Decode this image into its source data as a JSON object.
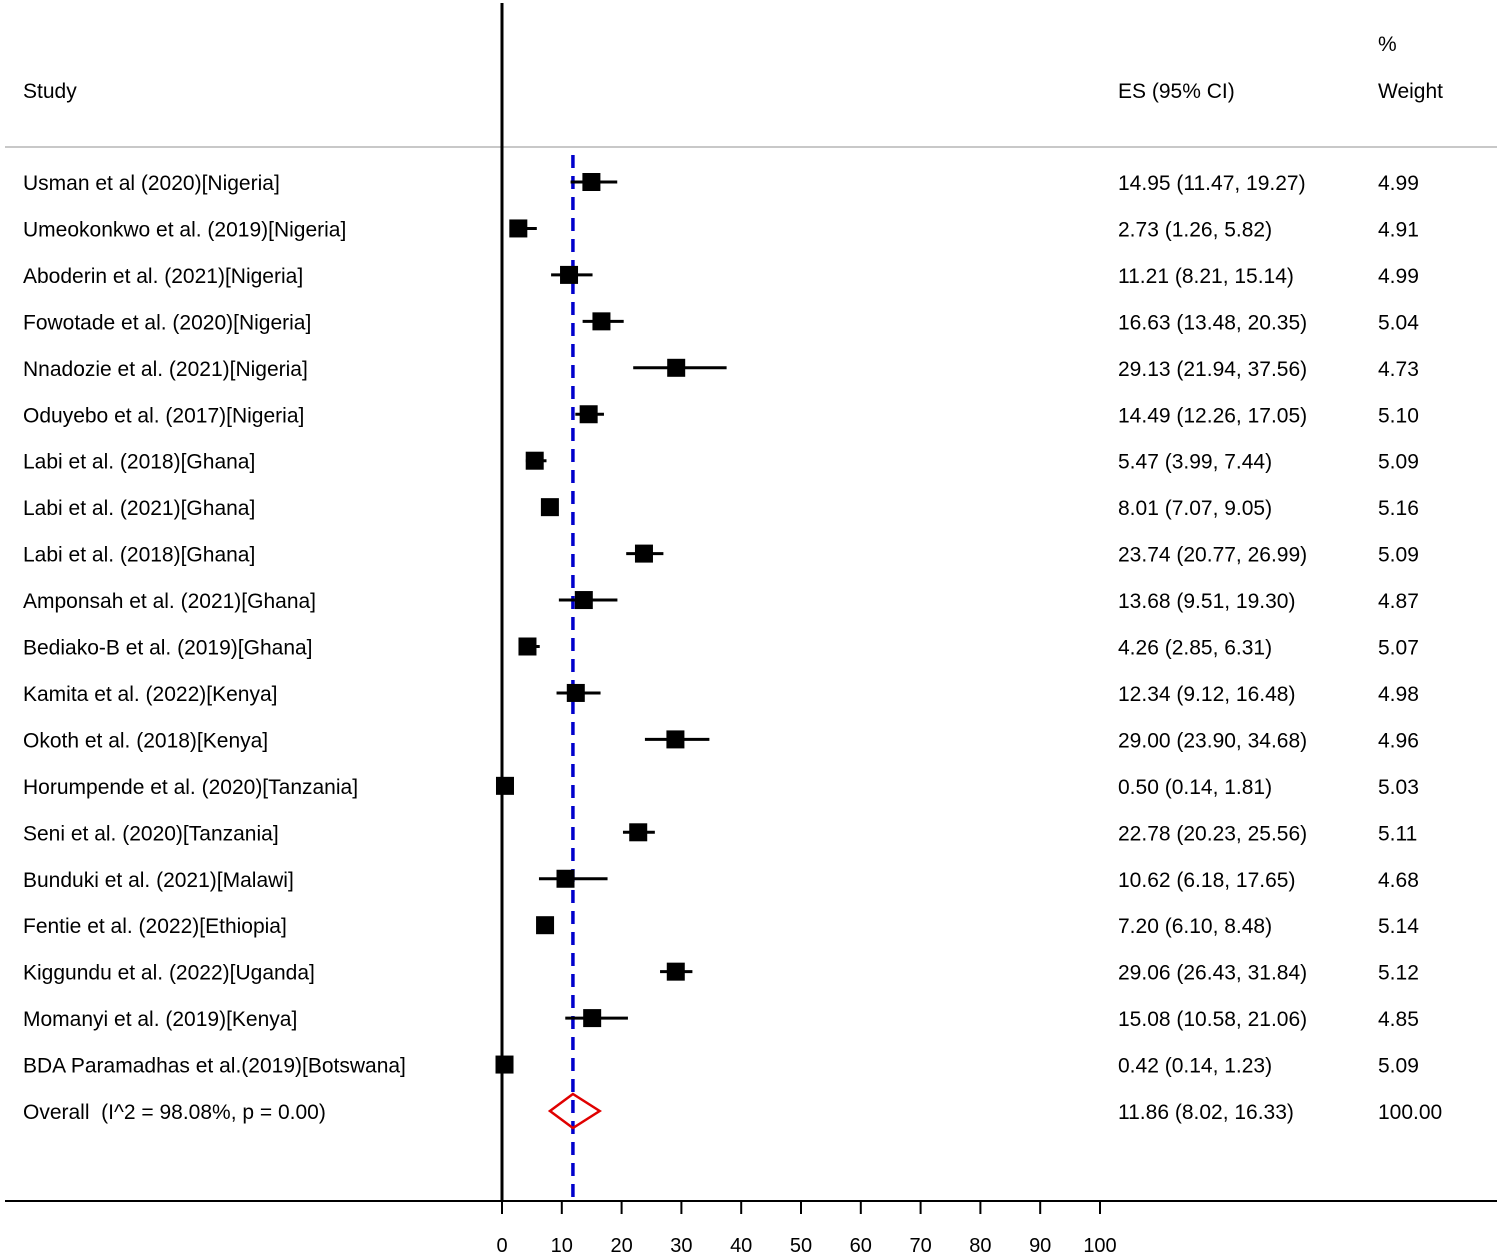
{
  "chart_data": {
    "type": "forest",
    "headers": {
      "study": "Study",
      "es": "ES (95% CI)",
      "weight_line1": "%",
      "weight_line2": "Weight"
    },
    "x_ticks": [
      0,
      10,
      20,
      30,
      40,
      50,
      60,
      70,
      80,
      90,
      100
    ],
    "xlim": [
      0,
      100
    ],
    "null_line": 0,
    "pooled_line": 11.86,
    "colors": {
      "marker": "#000000",
      "pooled_line": "#0000cc",
      "diamond": "#e00000",
      "header_rule": "#c8c8c8"
    },
    "studies": [
      {
        "label": "Usman et al (2020)[Nigeria]",
        "es": 14.95,
        "lo": 11.47,
        "hi": 19.27,
        "es_text": "14.95 (11.47, 19.27)",
        "weight": "4.99"
      },
      {
        "label": "Umeokonkwo et al. (2019)[Nigeria]",
        "es": 2.73,
        "lo": 1.26,
        "hi": 5.82,
        "es_text": "2.73 (1.26, 5.82)",
        "weight": "4.91"
      },
      {
        "label": "Aboderin et al. (2021)[Nigeria]",
        "es": 11.21,
        "lo": 8.21,
        "hi": 15.14,
        "es_text": "11.21 (8.21, 15.14)",
        "weight": "4.99"
      },
      {
        "label": "Fowotade et al. (2020)[Nigeria]",
        "es": 16.63,
        "lo": 13.48,
        "hi": 20.35,
        "es_text": "16.63 (13.48, 20.35)",
        "weight": "5.04"
      },
      {
        "label": "Nnadozie et al. (2021)[Nigeria]",
        "es": 29.13,
        "lo": 21.94,
        "hi": 37.56,
        "es_text": "29.13 (21.94, 37.56)",
        "weight": "4.73"
      },
      {
        "label": "Oduyebo et al. (2017)[Nigeria]",
        "es": 14.49,
        "lo": 12.26,
        "hi": 17.05,
        "es_text": "14.49 (12.26, 17.05)",
        "weight": "5.10"
      },
      {
        "label": "Labi et al. (2018)[Ghana]",
        "es": 5.47,
        "lo": 3.99,
        "hi": 7.44,
        "es_text": "5.47 (3.99, 7.44)",
        "weight": "5.09"
      },
      {
        "label": "Labi et al. (2021)[Ghana]",
        "es": 8.01,
        "lo": 7.07,
        "hi": 9.05,
        "es_text": "8.01 (7.07, 9.05)",
        "weight": "5.16"
      },
      {
        "label": "Labi et al. (2018)[Ghana]",
        "es": 23.74,
        "lo": 20.77,
        "hi": 26.99,
        "es_text": "23.74 (20.77, 26.99)",
        "weight": "5.09"
      },
      {
        "label": "Amponsah et al. (2021)[Ghana]",
        "es": 13.68,
        "lo": 9.51,
        "hi": 19.3,
        "es_text": "13.68 (9.51, 19.30)",
        "weight": "4.87"
      },
      {
        "label": "Bediako-B et al. (2019)[Ghana]",
        "es": 4.26,
        "lo": 2.85,
        "hi": 6.31,
        "es_text": "4.26 (2.85, 6.31)",
        "weight": "5.07"
      },
      {
        "label": "Kamita et al. (2022)[Kenya]",
        "es": 12.34,
        "lo": 9.12,
        "hi": 16.48,
        "es_text": "12.34 (9.12, 16.48)",
        "weight": "4.98"
      },
      {
        "label": "Okoth et al. (2018)[Kenya]",
        "es": 29.0,
        "lo": 23.9,
        "hi": 34.68,
        "es_text": "29.00 (23.90, 34.68)",
        "weight": "4.96"
      },
      {
        "label": "Horumpende et al. (2020)[Tanzania]",
        "es": 0.5,
        "lo": 0.14,
        "hi": 1.81,
        "es_text": "0.50 (0.14, 1.81)",
        "weight": "5.03"
      },
      {
        "label": "Seni et al. (2020)[Tanzania]",
        "es": 22.78,
        "lo": 20.23,
        "hi": 25.56,
        "es_text": "22.78 (20.23, 25.56)",
        "weight": "5.11"
      },
      {
        "label": "Bunduki et al. (2021)[Malawi]",
        "es": 10.62,
        "lo": 6.18,
        "hi": 17.65,
        "es_text": "10.62 (6.18, 17.65)",
        "weight": "4.68"
      },
      {
        "label": "Fentie et al. (2022)[Ethiopia]",
        "es": 7.2,
        "lo": 6.1,
        "hi": 8.48,
        "es_text": "7.20 (6.10, 8.48)",
        "weight": "5.14"
      },
      {
        "label": "Kiggundu et al. (2022)[Uganda]",
        "es": 29.06,
        "lo": 26.43,
        "hi": 31.84,
        "es_text": "29.06 (26.43, 31.84)",
        "weight": "5.12"
      },
      {
        "label": "Momanyi et al. (2019)[Kenya]",
        "es": 15.08,
        "lo": 10.58,
        "hi": 21.06,
        "es_text": "15.08 (10.58, 21.06)",
        "weight": "4.85"
      },
      {
        "label": "BDA Paramadhas et al.(2019)[Botswana]",
        "es": 0.42,
        "lo": 0.14,
        "hi": 1.23,
        "es_text": "0.42 (0.14, 1.23)",
        "weight": "5.09"
      }
    ],
    "overall": {
      "label": "Overall  (I^2 = 98.08%, p = 0.00)",
      "es": 11.86,
      "lo": 8.02,
      "hi": 16.33,
      "es_text": "11.86 (8.02, 16.33)",
      "weight": "100.00"
    }
  }
}
